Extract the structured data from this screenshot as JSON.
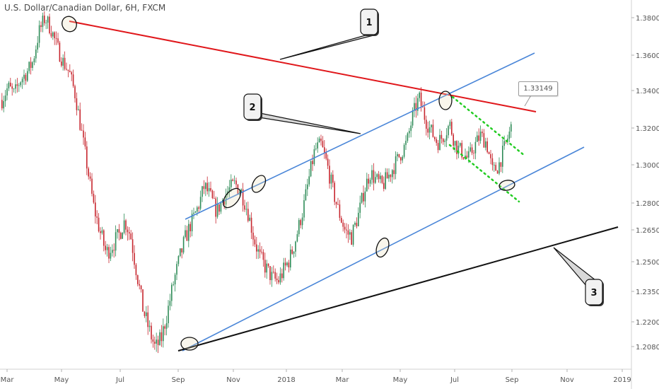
{
  "chart_data": {
    "type": "candlestick",
    "title": "U.S. Dollar/Canadian Dollar, 6H, FXCM",
    "x_ticks": [
      "Mar",
      "May",
      "Jul",
      "Sep",
      "Nov",
      "2018",
      "Mar",
      "May",
      "Jul",
      "Sep",
      "Nov",
      "2019"
    ],
    "y_ticks": [
      "1.38000",
      "1.36000",
      "1.34000",
      "1.32000",
      "1.30000",
      "1.28000",
      "1.26500",
      "1.25000",
      "1.23500",
      "1.22000",
      "1.20800"
    ],
    "price_label": "1.33149",
    "price_path": [
      1.335,
      1.342,
      1.338,
      1.346,
      1.35,
      1.356,
      1.372,
      1.38,
      1.374,
      1.364,
      1.356,
      1.35,
      1.337,
      1.317,
      1.297,
      1.277,
      1.264,
      1.254,
      1.258,
      1.262,
      1.27,
      1.262,
      1.244,
      1.226,
      1.216,
      1.207,
      1.212,
      1.225,
      1.24,
      1.252,
      1.262,
      1.27,
      1.278,
      1.289,
      1.283,
      1.275,
      1.282,
      1.287,
      1.29,
      1.286,
      1.276,
      1.262,
      1.252,
      1.247,
      1.242,
      1.24,
      1.246,
      1.252,
      1.262,
      1.275,
      1.292,
      1.308,
      1.311,
      1.3,
      1.286,
      1.274,
      1.264,
      1.262,
      1.272,
      1.286,
      1.296,
      1.292,
      1.289,
      1.294,
      1.3,
      1.306,
      1.312,
      1.327,
      1.336,
      1.325,
      1.318,
      1.312,
      1.316,
      1.322,
      1.31,
      1.307,
      1.303,
      1.31,
      1.316,
      1.312,
      1.296,
      1.3,
      1.31,
      1.32
    ],
    "trendlines": [
      {
        "label": "1",
        "color": "#e0171b"
      },
      {
        "label": "2",
        "color": "#4a86d8"
      },
      {
        "label": "3",
        "color": "#111111"
      }
    ],
    "flag_color": "#22cc22",
    "grid": false,
    "up_color": "#2e8b57",
    "down_color": "#c7262e"
  },
  "callouts": [
    "1",
    "2",
    "3"
  ]
}
